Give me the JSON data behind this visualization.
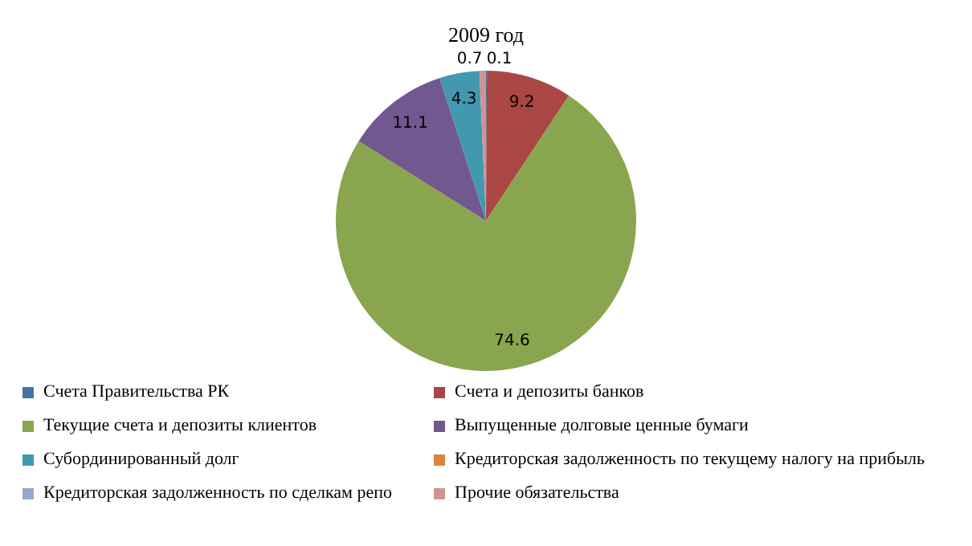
{
  "chart_data": {
    "type": "pie",
    "title": "2009 год",
    "categories": [
      "Счета Правительства РК",
      "Счета и депозиты  банков",
      "Текущие счета и депозиты клиентов",
      "Выпущенные долговые ценные бумаги",
      "Субординированный долг",
      "Кредиторская задолженность по текущему налогу на прибыль",
      "Кредиторская задолженность по сделкам репо",
      "Прочие обязательства"
    ],
    "values": [
      0.1,
      9.2,
      74.6,
      11.1,
      4.3,
      0,
      0,
      0.7
    ],
    "value_labels": [
      "0.1",
      "9.2",
      "74.6",
      "11.1",
      "4.3",
      null,
      null,
      "0.7"
    ],
    "colors": [
      "#4572a7",
      "#aa4643",
      "#89a54e",
      "#71588f",
      "#4198af",
      "#db843d",
      "#93a9cf",
      "#d19392"
    ],
    "legend": "bottom"
  }
}
